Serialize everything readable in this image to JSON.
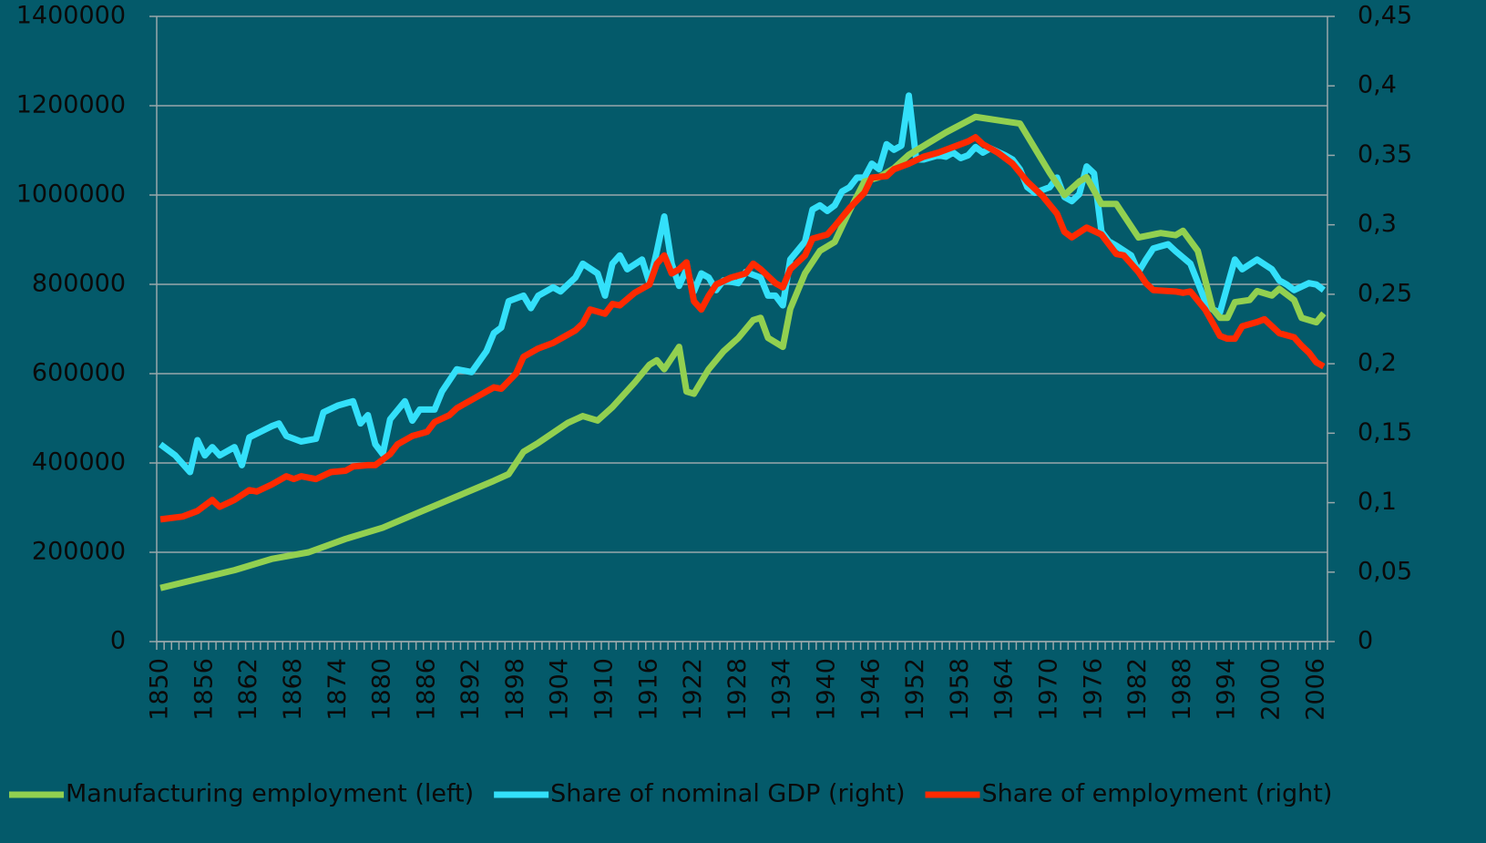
{
  "chart_data": {
    "type": "line",
    "xlim": [
      1849.5,
      2007.5
    ],
    "xticks": [
      1850,
      1856,
      1862,
      1868,
      1874,
      1880,
      1886,
      1892,
      1898,
      1904,
      1910,
      1916,
      1922,
      1928,
      1934,
      1940,
      1946,
      1952,
      1958,
      1964,
      1970,
      1976,
      1982,
      1988,
      1994,
      2000,
      2006
    ],
    "ylim": [
      0,
      1400000
    ],
    "yticks": [
      0,
      200000,
      400000,
      600000,
      800000,
      1000000,
      1200000,
      1400000
    ],
    "y2lim": [
      0,
      0.45
    ],
    "y2ticks": [
      0,
      {
        "value": 0.05,
        "label": "0,05"
      },
      {
        "value": 0.1,
        "label": "0,1"
      },
      {
        "value": 0.15,
        "label": "0,15"
      },
      {
        "value": 0.2,
        "label": "0,2"
      },
      {
        "value": 0.25,
        "label": "0,25"
      },
      {
        "value": 0.3,
        "label": "0,3"
      },
      {
        "value": 0.35,
        "label": "0,35"
      },
      {
        "value": 0.4,
        "label": "0,4"
      },
      {
        "value": 0.45,
        "label": "0,45"
      }
    ],
    "grid": true,
    "legend": "bottom",
    "series": [
      {
        "name": "Manufacturing employment (left)",
        "color": "#92d050",
        "axis": "y",
        "x": [
          1850,
          1855,
          1860,
          1865,
          1870,
          1875,
          1880,
          1885,
          1890,
          1895,
          1897,
          1899,
          1901,
          1905,
          1907,
          1909,
          1911,
          1914,
          1916,
          1917,
          1918,
          1920,
          1921,
          1922,
          1924,
          1926,
          1928,
          1930,
          1931,
          1932,
          1934,
          1935,
          1937,
          1939,
          1941,
          1943,
          1945,
          1947,
          1949,
          1951,
          1953,
          1956,
          1960,
          1964,
          1966,
          1970,
          1972,
          1974,
          1975,
          1977,
          1979,
          1982,
          1985,
          1987,
          1988,
          1990,
          1992,
          1993,
          1994,
          1995,
          1997,
          1998,
          2000,
          2001,
          2003,
          2004,
          2006,
          2007
        ],
        "values": [
          120000,
          140000,
          160000,
          185000,
          200000,
          230000,
          255000,
          290000,
          325000,
          360000,
          375000,
          425000,
          445000,
          490000,
          505000,
          495000,
          525000,
          580000,
          620000,
          630000,
          610000,
          660000,
          560000,
          555000,
          610000,
          650000,
          680000,
          720000,
          725000,
          680000,
          660000,
          745000,
          825000,
          875000,
          895000,
          965000,
          1030000,
          1040000,
          1060000,
          1090000,
          1110000,
          1140000,
          1175000,
          1165000,
          1160000,
          1050000,
          1000000,
          1030000,
          1040000,
          980000,
          980000,
          905000,
          915000,
          910000,
          920000,
          875000,
          745000,
          725000,
          725000,
          760000,
          765000,
          785000,
          775000,
          790000,
          765000,
          725000,
          715000,
          735000
        ]
      },
      {
        "name": "Share of nominal GDP (right)",
        "color": "#33e0fa",
        "axis": "y2",
        "x": [
          1850,
          1852,
          1854,
          1855,
          1856,
          1857,
          1858,
          1860,
          1861,
          1862,
          1865,
          1866,
          1867,
          1869,
          1871,
          1872,
          1874,
          1876,
          1877,
          1878,
          1879,
          1880,
          1881,
          1883,
          1884,
          1885,
          1887,
          1888,
          1890,
          1892,
          1894,
          1895,
          1896,
          1897,
          1899,
          1900,
          1901,
          1903,
          1904,
          1906,
          1907,
          1909,
          1910,
          1911,
          1912,
          1913,
          1915,
          1916,
          1917,
          1918,
          1919,
          1920,
          1921,
          1922,
          1923,
          1924,
          1925,
          1926,
          1928,
          1929,
          1931,
          1932,
          1933,
          1934,
          1935,
          1937,
          1938,
          1939,
          1940,
          1941,
          1942,
          1943,
          1944,
          1945,
          1946,
          1947,
          1948,
          1949,
          1950,
          1951,
          1952,
          1953,
          1955,
          1956,
          1957,
          1958,
          1959,
          1960,
          1961,
          1962,
          1964,
          1965,
          1966,
          1967,
          1968,
          1970,
          1971,
          1972,
          1973,
          1974,
          1975,
          1976,
          1977,
          1978,
          1979,
          1981,
          1982,
          1983,
          1984,
          1986,
          1987,
          1989,
          1991,
          1992,
          1993,
          1995,
          1996,
          1998,
          2000,
          2001,
          2002,
          2003,
          2005,
          2006,
          2007
        ],
        "values": [
          0.142,
          0.134,
          0.122,
          0.145,
          0.134,
          0.14,
          0.134,
          0.14,
          0.127,
          0.147,
          0.155,
          0.157,
          0.148,
          0.144,
          0.146,
          0.165,
          0.17,
          0.173,
          0.157,
          0.163,
          0.142,
          0.135,
          0.16,
          0.173,
          0.159,
          0.167,
          0.167,
          0.18,
          0.196,
          0.194,
          0.209,
          0.222,
          0.226,
          0.245,
          0.249,
          0.24,
          0.249,
          0.255,
          0.252,
          0.262,
          0.272,
          0.265,
          0.249,
          0.272,
          0.278,
          0.268,
          0.275,
          0.258,
          0.281,
          0.306,
          0.272,
          0.256,
          0.268,
          0.252,
          0.265,
          0.262,
          0.253,
          0.26,
          0.258,
          0.266,
          0.262,
          0.249,
          0.249,
          0.242,
          0.275,
          0.288,
          0.311,
          0.314,
          0.31,
          0.314,
          0.324,
          0.327,
          0.334,
          0.334,
          0.344,
          0.34,
          0.358,
          0.354,
          0.357,
          0.393,
          0.347,
          0.347,
          0.35,
          0.349,
          0.352,
          0.348,
          0.35,
          0.356,
          0.352,
          0.355,
          0.35,
          0.347,
          0.34,
          0.327,
          0.323,
          0.327,
          0.334,
          0.32,
          0.317,
          0.322,
          0.342,
          0.337,
          0.295,
          0.288,
          0.285,
          0.278,
          0.266,
          0.275,
          0.283,
          0.286,
          0.281,
          0.272,
          0.245,
          0.239,
          0.237,
          0.275,
          0.268,
          0.275,
          0.268,
          0.26,
          0.257,
          0.253,
          0.258,
          0.257,
          0.253
        ]
      },
      {
        "name": "Share of employment (right)",
        "color": "#ff2a00",
        "axis": "y2",
        "x": [
          1850,
          1853,
          1855,
          1857,
          1858,
          1860,
          1862,
          1863,
          1865,
          1867,
          1868,
          1869,
          1871,
          1873,
          1875,
          1876,
          1878,
          1879,
          1881,
          1882,
          1884,
          1886,
          1887,
          1889,
          1890,
          1892,
          1894,
          1895,
          1896,
          1898,
          1899,
          1901,
          1903,
          1904,
          1906,
          1907,
          1908,
          1910,
          1911,
          1912,
          1914,
          1916,
          1917,
          1918,
          1919,
          1920,
          1921,
          1922,
          1923,
          1924,
          1925,
          1927,
          1929,
          1930,
          1931,
          1933,
          1934,
          1935,
          1937,
          1938,
          1940,
          1941,
          1943,
          1945,
          1946,
          1948,
          1949,
          1951,
          1953,
          1955,
          1957,
          1959,
          1960,
          1961,
          1963,
          1965,
          1967,
          1969,
          1971,
          1972,
          1973,
          1975,
          1977,
          1979,
          1980,
          1982,
          1983,
          1984,
          1987,
          1988,
          1989,
          1991,
          1993,
          1994,
          1995,
          1996,
          1998,
          1999,
          2000,
          2001,
          2003,
          2004,
          2005,
          2006,
          2007
        ],
        "values": [
          0.088,
          0.09,
          0.094,
          0.102,
          0.097,
          0.102,
          0.109,
          0.108,
          0.113,
          0.119,
          0.117,
          0.119,
          0.117,
          0.122,
          0.123,
          0.126,
          0.127,
          0.127,
          0.135,
          0.142,
          0.148,
          0.151,
          0.158,
          0.163,
          0.168,
          0.174,
          0.18,
          0.183,
          0.182,
          0.193,
          0.205,
          0.211,
          0.215,
          0.218,
          0.224,
          0.229,
          0.239,
          0.236,
          0.243,
          0.242,
          0.251,
          0.257,
          0.272,
          0.278,
          0.265,
          0.268,
          0.273,
          0.245,
          0.239,
          0.249,
          0.257,
          0.262,
          0.265,
          0.272,
          0.268,
          0.258,
          0.255,
          0.268,
          0.278,
          0.29,
          0.293,
          0.299,
          0.312,
          0.323,
          0.334,
          0.335,
          0.34,
          0.344,
          0.349,
          0.352,
          0.356,
          0.36,
          0.363,
          0.358,
          0.352,
          0.344,
          0.331,
          0.321,
          0.308,
          0.295,
          0.291,
          0.298,
          0.293,
          0.279,
          0.278,
          0.266,
          0.258,
          0.253,
          0.252,
          0.251,
          0.252,
          0.239,
          0.22,
          0.218,
          0.218,
          0.227,
          0.23,
          0.232,
          0.227,
          0.222,
          0.219,
          0.213,
          0.208,
          0.201,
          0.198
        ]
      }
    ]
  }
}
